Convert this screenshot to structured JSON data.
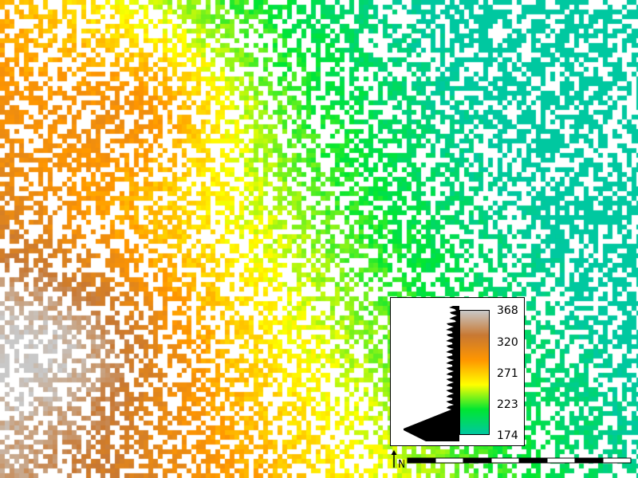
{
  "map": {
    "type": "raster-elevation",
    "value_range": [
      174,
      368
    ],
    "color_ramp": [
      "#00c8a0",
      "#00e632",
      "#ffff00",
      "#ff9600",
      "#c87832",
      "#c8c8c8"
    ]
  },
  "legend": {
    "ticks": [
      "368",
      "320",
      "271",
      "223",
      "174"
    ]
  },
  "north_arrow": {
    "label": "N",
    "icon": "north-arrow-icon"
  },
  "scale_bar": {
    "segments": 8
  }
}
